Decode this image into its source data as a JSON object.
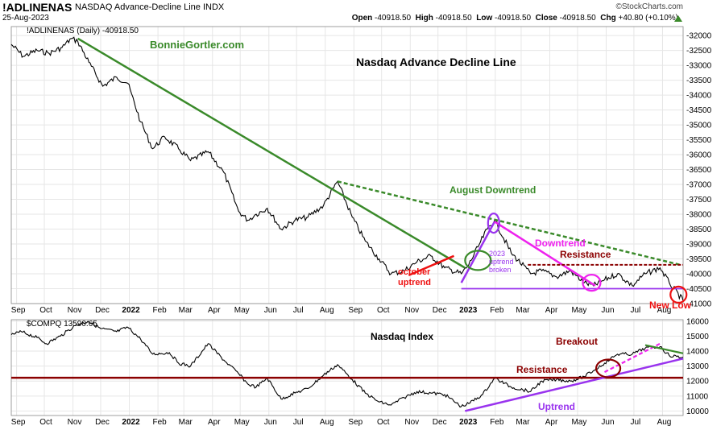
{
  "header": {
    "symbol": "!ADLINENAS",
    "name": "NASDAQ Advance-Decline Line INDX",
    "date": "25-Aug-2023",
    "watermark": "©StockCharts.com",
    "open_label": "Open",
    "open": "-40918.50",
    "high_label": "High",
    "high": "-40918.50",
    "low_label": "Low",
    "low": "-40918.50",
    "close_label": "Close",
    "close": "-40918.50",
    "chg_label": "Chg",
    "chg": "+40.80 (+0.10%)"
  },
  "colors": {
    "price": "#000000",
    "grid": "#e6e6e6",
    "green": "#3a8a2a",
    "red": "#ee1111",
    "magenta": "#ee22ee",
    "purple": "#9933ee",
    "darkred": "#8b0000"
  },
  "chart_data": [
    {
      "type": "line",
      "legend": "!ADLINENAS (Daily) -40918.50",
      "title": "Nasdaq Advance Decline Line",
      "source": "BonnieGortler.com",
      "x_ticks": [
        "Sep",
        "Oct",
        "Nov",
        "Dec",
        "2022",
        "Feb",
        "Mar",
        "Apr",
        "May",
        "Jun",
        "Jul",
        "Aug",
        "Sep",
        "Oct",
        "Nov",
        "Dec",
        "2023",
        "Feb",
        "Mar",
        "Apr",
        "May",
        "Jun",
        "Jul",
        "Aug"
      ],
      "y_ticks": [
        "-32000",
        "-32500",
        "-33000",
        "-33500",
        "-34000",
        "-34500",
        "-35000",
        "-35500",
        "-36000",
        "-36500",
        "-37000",
        "-37500",
        "-38000",
        "-38500",
        "-39000",
        "-39500",
        "-40000",
        "-40500",
        "-41000"
      ],
      "ylim": [
        -41000,
        -31700
      ],
      "x_range": [
        "2021-08-28",
        "2023-08-25"
      ],
      "series": [
        {
          "x": [
            "2021-08-28",
            "2021-09-10",
            "2021-09-25",
            "2021-10-08",
            "2021-10-22",
            "2021-11-01",
            "2021-11-08",
            "2021-11-20",
            "2021-12-05",
            "2021-12-20",
            "2022-01-01",
            "2022-01-15",
            "2022-01-28",
            "2022-02-10",
            "2022-02-25",
            "2022-03-10",
            "2022-03-29",
            "2022-04-15",
            "2022-05-01",
            "2022-05-11",
            "2022-05-20",
            "2022-06-01",
            "2022-06-16",
            "2022-07-01",
            "2022-07-15",
            "2022-08-01",
            "2022-08-16",
            "2022-09-01",
            "2022-09-15",
            "2022-09-30",
            "2022-10-13",
            "2022-10-27",
            "2022-11-10",
            "2022-11-25",
            "2022-12-10",
            "2022-12-28",
            "2023-01-05",
            "2023-01-15",
            "2023-01-25",
            "2023-02-02",
            "2023-02-20",
            "2023-03-13",
            "2023-03-25",
            "2023-04-10",
            "2023-04-25",
            "2023-05-10",
            "2023-05-20",
            "2023-06-01",
            "2023-06-15",
            "2023-07-01",
            "2023-07-15",
            "2023-07-31",
            "2023-08-10",
            "2023-08-25"
          ],
          "values": [
            -32300,
            -32700,
            -32500,
            -32600,
            -32400,
            -32100,
            -32200,
            -32900,
            -33700,
            -33400,
            -33600,
            -34900,
            -35800,
            -35400,
            -35800,
            -36200,
            -35900,
            -36600,
            -37900,
            -38200,
            -38000,
            -37800,
            -38500,
            -38200,
            -38100,
            -37700,
            -36900,
            -38100,
            -38900,
            -39500,
            -40000,
            -39900,
            -39600,
            -39400,
            -39800,
            -40000,
            -39700,
            -39100,
            -38500,
            -38200,
            -39300,
            -40000,
            -39900,
            -40100,
            -39900,
            -40300,
            -40400,
            -40200,
            -40000,
            -40400,
            -40000,
            -39800,
            -40300,
            -40900
          ]
        }
      ],
      "annotations": [
        "August Downtrend",
        "Resistance",
        "Downtrend",
        "october uptrend",
        "2023 uptrend broken",
        "New Low"
      ]
    },
    {
      "type": "line",
      "legend": "$COMPQ 13590.65",
      "title": "Nasdaq Index",
      "x_ticks": [
        "Sep",
        "Oct",
        "Nov",
        "Dec",
        "2022",
        "Feb",
        "Mar",
        "Apr",
        "May",
        "Jun",
        "Jul",
        "Aug",
        "Sep",
        "Oct",
        "Nov",
        "Dec",
        "2023",
        "Feb",
        "Mar",
        "Apr",
        "May",
        "Jun",
        "Jul",
        "Aug"
      ],
      "y_ticks": [
        "16000",
        "15000",
        "14000",
        "13000",
        "12000",
        "11000",
        "10000"
      ],
      "ylim": [
        9700,
        16100
      ],
      "x_range": [
        "2021-08-28",
        "2023-08-25"
      ],
      "series": [
        {
          "x": [
            "2021-08-28",
            "2021-09-08",
            "2021-09-25",
            "2021-10-05",
            "2021-10-20",
            "2021-11-05",
            "2021-11-19",
            "2021-12-03",
            "2021-12-20",
            "2022-01-01",
            "2022-01-15",
            "2022-01-28",
            "2022-02-15",
            "2022-02-25",
            "2022-03-10",
            "2022-03-29",
            "2022-04-15",
            "2022-05-01",
            "2022-05-11",
            "2022-05-20",
            "2022-06-01",
            "2022-06-16",
            "2022-07-01",
            "2022-07-15",
            "2022-08-01",
            "2022-08-16",
            "2022-09-01",
            "2022-09-15",
            "2022-09-30",
            "2022-10-13",
            "2022-10-27",
            "2022-11-10",
            "2022-11-25",
            "2022-12-10",
            "2022-12-28",
            "2023-01-05",
            "2023-01-20",
            "2023-02-02",
            "2023-02-20",
            "2023-03-13",
            "2023-03-25",
            "2023-04-10",
            "2023-04-25",
            "2023-05-10",
            "2023-05-20",
            "2023-06-01",
            "2023-06-15",
            "2023-07-01",
            "2023-07-15",
            "2023-07-31",
            "2023-08-10",
            "2023-08-25"
          ],
          "values": [
            15100,
            15300,
            14900,
            14500,
            15000,
            15700,
            16000,
            15500,
            15300,
            15600,
            14800,
            13800,
            13900,
            13200,
            13000,
            14500,
            13400,
            12500,
            11800,
            11600,
            12200,
            10800,
            11200,
            11500,
            12400,
            13100,
            12100,
            11200,
            10600,
            10400,
            10900,
            11300,
            11200,
            11100,
            10300,
            10500,
            11100,
            12200,
            11600,
            11300,
            12000,
            12100,
            12000,
            12300,
            12700,
            13200,
            13800,
            13800,
            14200,
            14300,
            13700,
            13590
          ]
        }
      ],
      "annotations": [
        "Breakout",
        "Resistance",
        "Uptrend"
      ]
    }
  ]
}
